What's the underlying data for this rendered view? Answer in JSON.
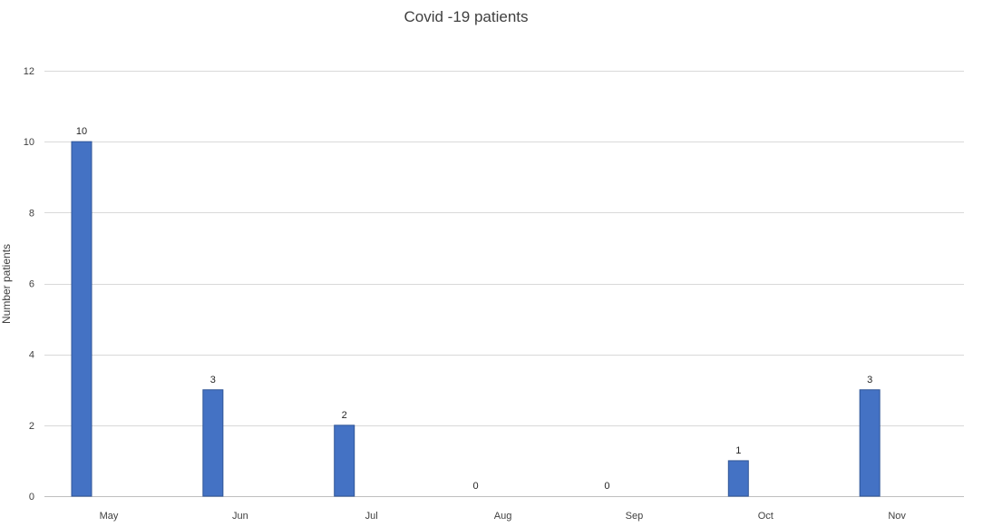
{
  "chart_data": {
    "type": "bar",
    "title": "Covid -19 patients",
    "xlabel": "",
    "ylabel": "Number patients",
    "categories": [
      "May",
      "Jun",
      "Jul",
      "Aug",
      "Sep",
      "Oct",
      "Nov"
    ],
    "values": [
      10,
      3,
      2,
      0,
      0,
      1,
      3
    ],
    "data_labels": [
      "10",
      "3",
      "2",
      "0",
      "0",
      "1",
      "3"
    ],
    "ylim": [
      0,
      12
    ],
    "yticks": [
      0,
      2,
      4,
      6,
      8,
      10,
      12
    ],
    "grid": true,
    "legend": "none",
    "bar_color": "#4472c4"
  }
}
